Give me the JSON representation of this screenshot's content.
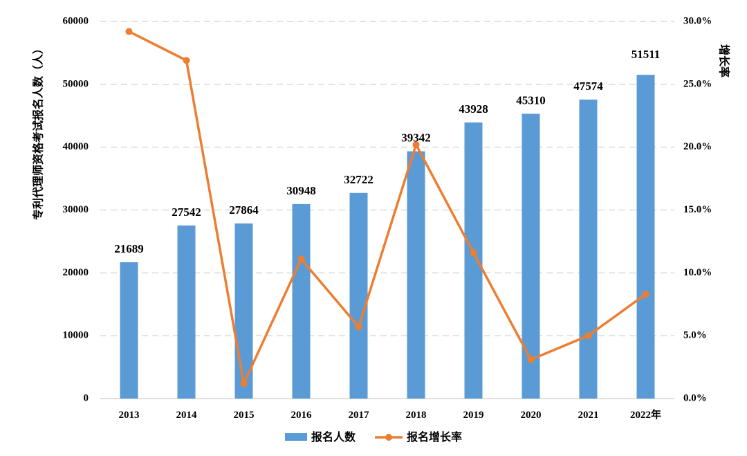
{
  "chart_data": {
    "type": "bar",
    "categories": [
      "2013",
      "2014",
      "2015",
      "2016",
      "2017",
      "2018",
      "2019",
      "2020",
      "2021",
      "2022年"
    ],
    "series": [
      {
        "name": "报名人数",
        "type": "bar",
        "axis": "left",
        "color": "#5b9bd5",
        "values": [
          21689,
          27542,
          27864,
          30948,
          32722,
          39342,
          43928,
          45310,
          47574,
          51511
        ],
        "data_labels": [
          "21689",
          "27542",
          "27864",
          "30948",
          "32722",
          "39342",
          "43928",
          "45310",
          "47574",
          "51511"
        ]
      },
      {
        "name": "报名增长率",
        "type": "line",
        "axis": "right",
        "color": "#ed7d31",
        "values": [
          29.2,
          26.9,
          1.2,
          11.1,
          5.7,
          20.2,
          11.6,
          3.1,
          5.0,
          8.3
        ]
      }
    ],
    "ylabel": "专利代理师资格考试报名人数（人）",
    "y2label": "增长率",
    "ylim": [
      0,
      60000
    ],
    "y_ticks": [
      "0",
      "10000",
      "20000",
      "30000",
      "40000",
      "50000",
      "60000"
    ],
    "y2lim": [
      0,
      30
    ],
    "y2_ticks": [
      "0.0%",
      "5.0%",
      "10.0%",
      "15.0%",
      "20.0%",
      "25.0%",
      "30.0%"
    ],
    "highlight_label_color": "#ff0000",
    "grid": true,
    "legend_position": "bottom"
  }
}
